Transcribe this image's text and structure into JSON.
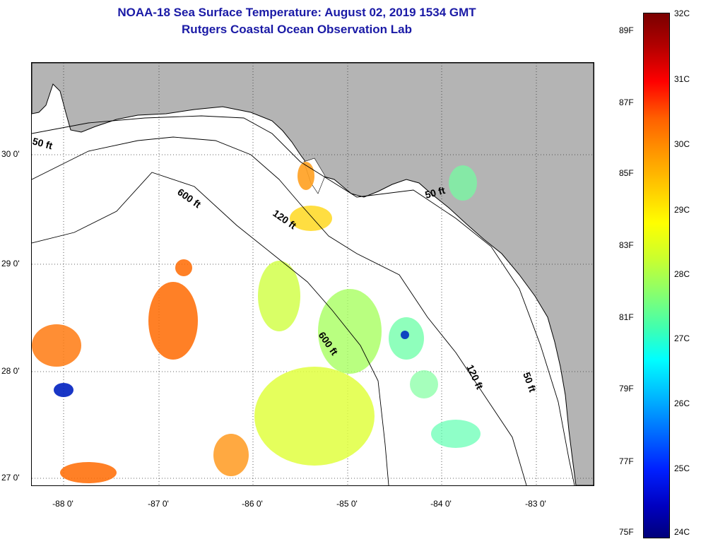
{
  "title": {
    "line1": "NOAA-18 Sea Surface Temperature:  August 02, 2019 1534 GMT",
    "line2": "Rutgers Coastal Ocean Observation Lab"
  },
  "axes": {
    "longitude_ticks": [
      "-88 0'",
      "-87 0'",
      "-86 0'",
      "-85 0'",
      "-84 0'",
      "-83 0'"
    ],
    "latitude_ticks": [
      "30 0'",
      "29 0'",
      "28 0'",
      "27 0'"
    ]
  },
  "isobath_labels": [
    "50 ft",
    "600 ft",
    "120 ft",
    "50 ft",
    "600 ft",
    "120 ft",
    "50 ft"
  ],
  "colorbar": {
    "fahrenheit": [
      "89F",
      "87F",
      "85F",
      "83F",
      "81F",
      "79F",
      "77F",
      "75F"
    ],
    "celsius": [
      "32C",
      "31C",
      "30C",
      "29C",
      "28C",
      "27C",
      "26C",
      "25C",
      "24C"
    ]
  },
  "colors": {
    "land": "#b4b4b4",
    "title": "#1a1aa6",
    "warm": "#ff6a00",
    "mid": "#e0ff40",
    "cool": "#40e0a0",
    "cold": "#0020c0"
  }
}
